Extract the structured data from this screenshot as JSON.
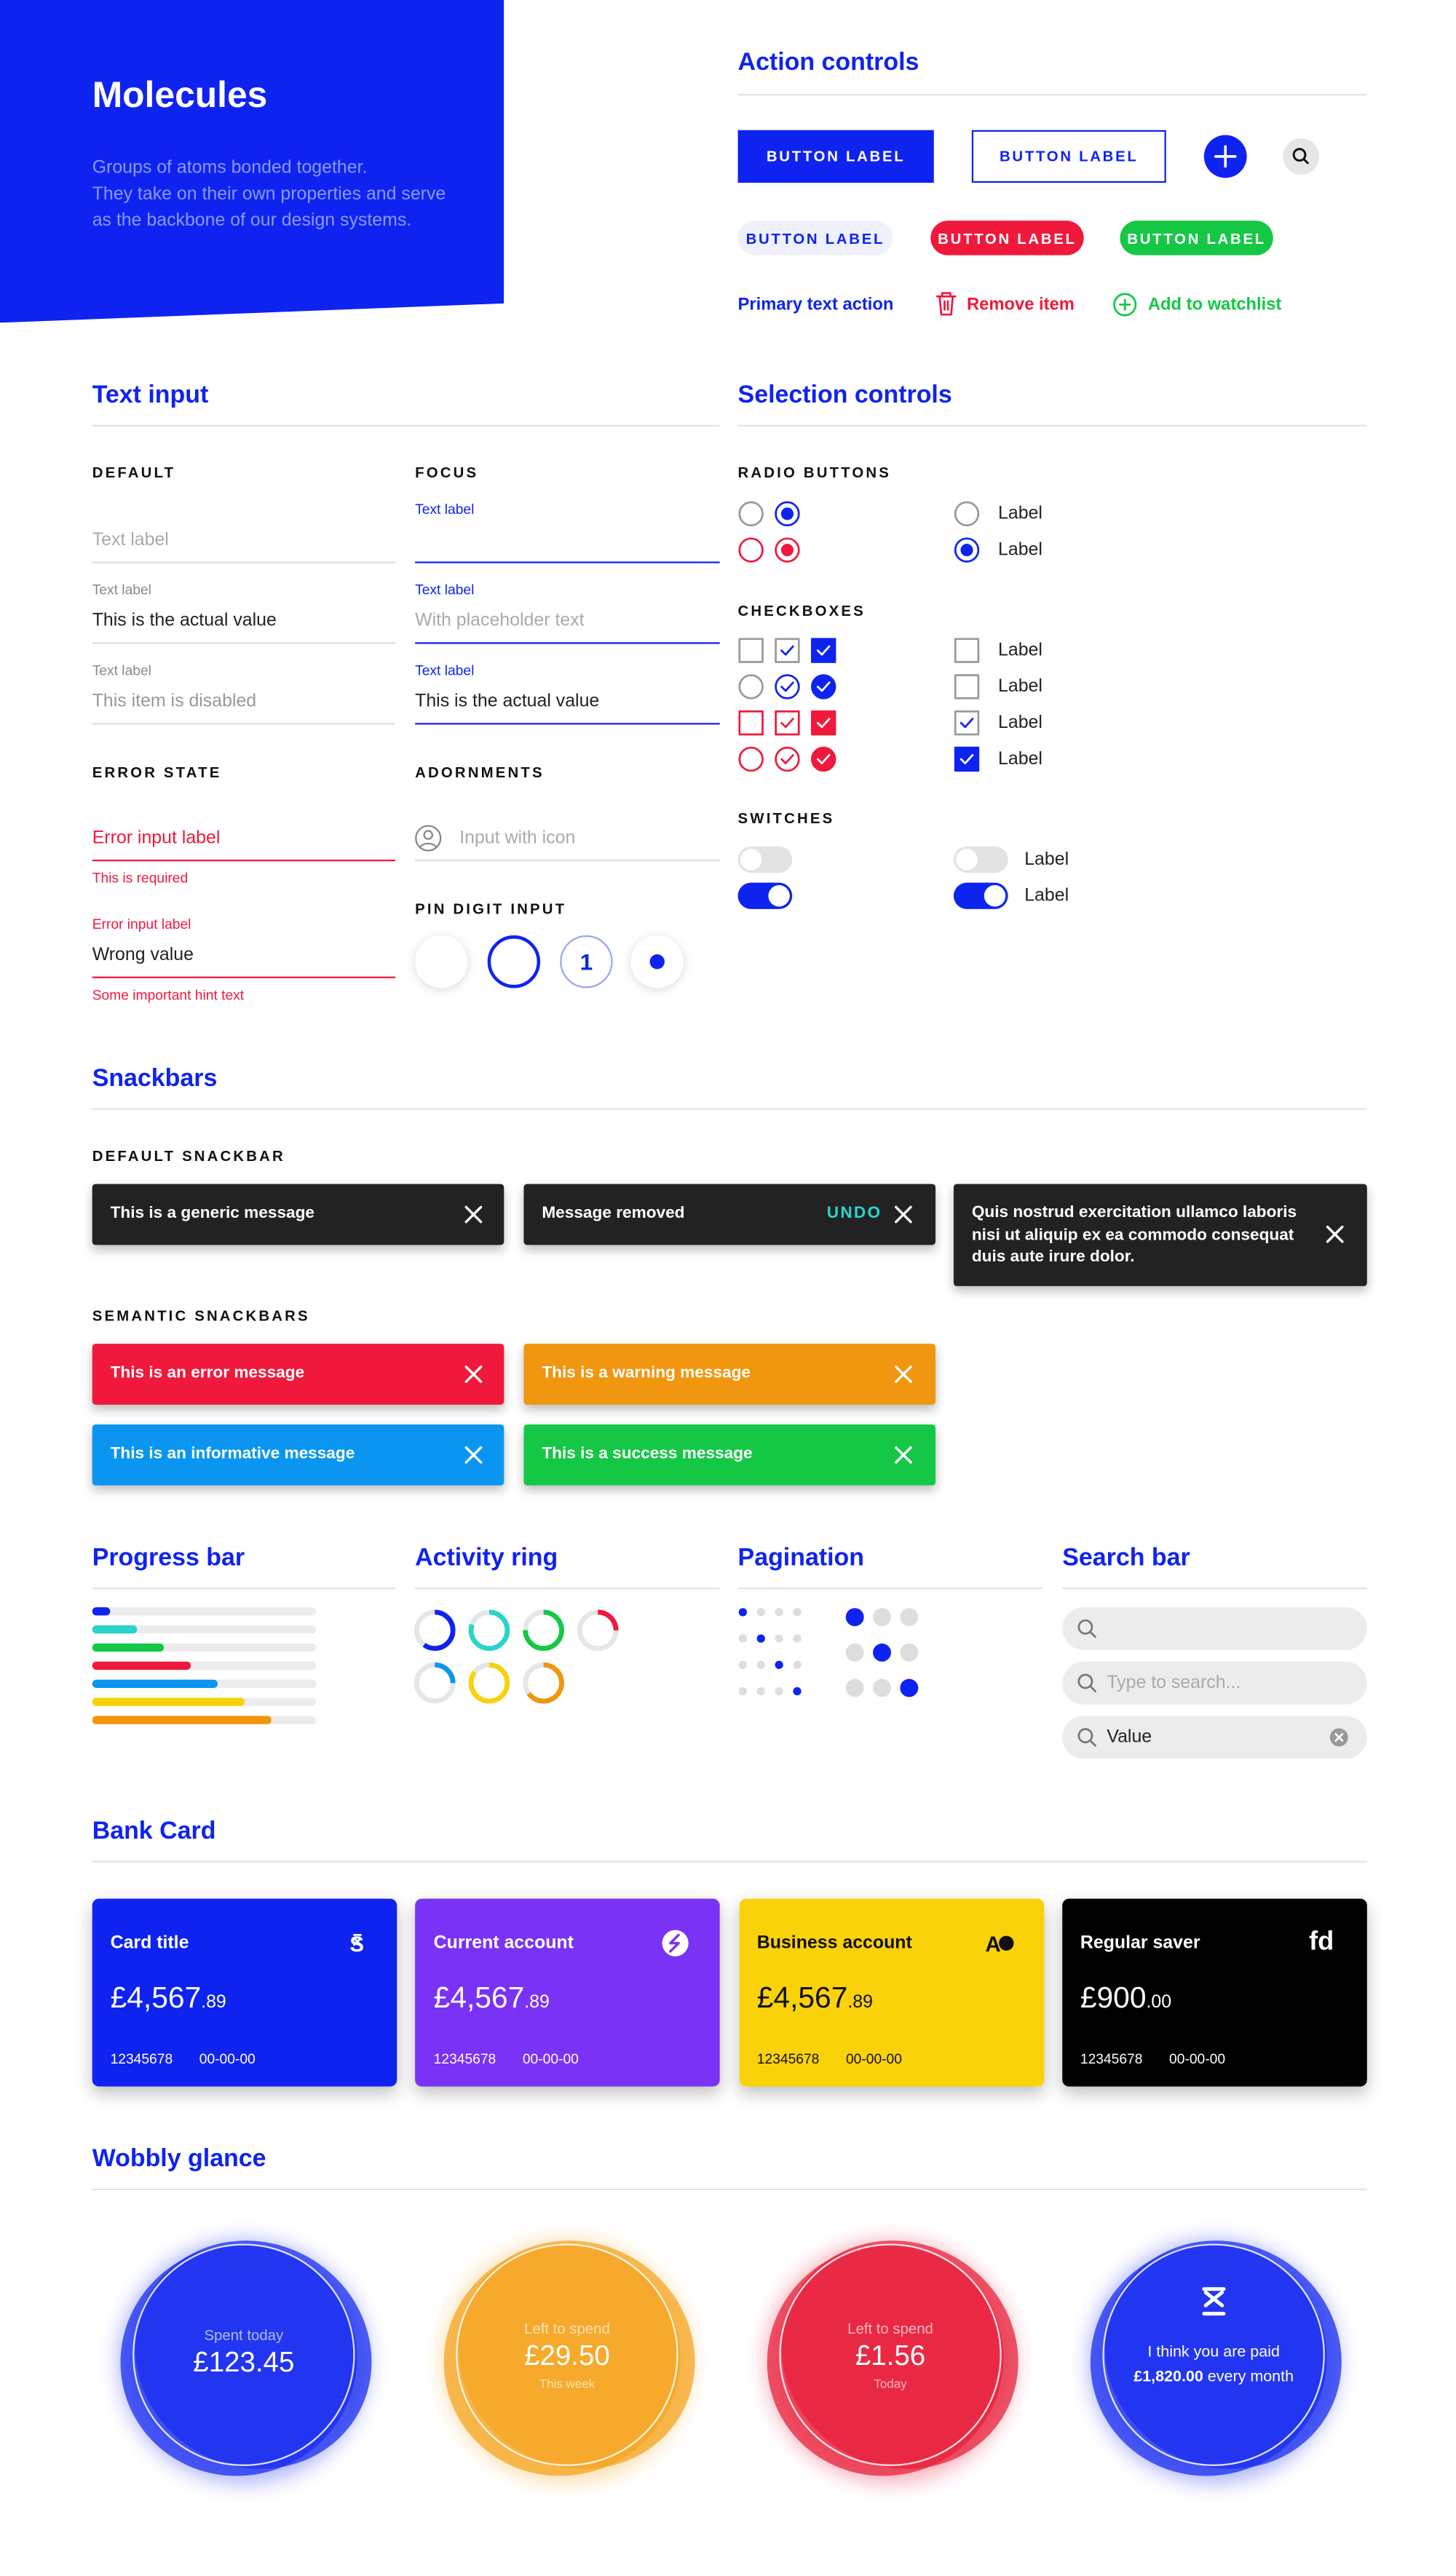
{
  "hero": {
    "title": "Molecules",
    "description": [
      "Groups of atoms bonded together.",
      "They take on their own properties and serve",
      "as the backbone of our design systems."
    ]
  },
  "action_controls": {
    "title": "Action controls",
    "buttons": [
      "BUTTON LABEL",
      "BUTTON LABEL",
      "BUTTON LABEL",
      "BUTTON LABEL",
      "BUTTON LABEL"
    ],
    "text_actions": [
      "Primary text action",
      "Remove item",
      "Add to watchlist"
    ]
  },
  "text_input": {
    "title": "Text input",
    "default": {
      "heading": "DEFAULT",
      "fields": [
        {
          "placeholder": "Text label"
        },
        {
          "label": "Text label",
          "value": "This is the actual value"
        },
        {
          "label": "Text label",
          "value": "This item is disabled"
        }
      ]
    },
    "focus": {
      "heading": "FOCUS",
      "fields": [
        {
          "label": "Text label"
        },
        {
          "label": "Text label",
          "placeholder": "With placeholder text"
        },
        {
          "label": "Text label",
          "value": "This is the actual value"
        }
      ]
    },
    "error": {
      "heading": "ERROR STATE",
      "fields": [
        {
          "value": "Error input label",
          "hint": "This is required"
        },
        {
          "label": "Error input label",
          "value": "Wrong value",
          "hint": "Some important hint text"
        }
      ]
    },
    "adornments": {
      "heading": "ADORNMENTS",
      "placeholder": "Input with icon"
    },
    "pin": {
      "heading": "PIN DIGIT INPUT",
      "digit": "1"
    }
  },
  "selection_controls": {
    "title": "Selection controls",
    "radio": {
      "heading": "RADIO BUTTONS",
      "labels": [
        "Label",
        "Label"
      ]
    },
    "checkboxes": {
      "heading": "CHECKBOXES",
      "labels": [
        "Label",
        "Label",
        "Label",
        "Label"
      ]
    },
    "switches": {
      "heading": "SWITCHES",
      "labels": [
        "Label",
        "Label"
      ]
    }
  },
  "snackbars": {
    "title": "Snackbars",
    "default_heading": "DEFAULT SNACKBAR",
    "default": [
      {
        "message": "This is a generic message"
      },
      {
        "message": "Message removed",
        "action": "UNDO"
      },
      {
        "message": "Quis nostrud exercitation ullamco laboris nisi ut aliquip ex ea commodo consequat duis aute irure dolor."
      }
    ],
    "semantic_heading": "SEMANTIC SNACKBARS",
    "semantic": [
      {
        "message": "This is an error message",
        "color": "#f0193c"
      },
      {
        "message": "This is a warning message",
        "color": "#f0960f"
      },
      {
        "message": "This is an informative message",
        "color": "#0a96f0"
      },
      {
        "message": "This is a success message",
        "color": "#14c846"
      }
    ]
  },
  "progress_bar": {
    "title": "Progress bar",
    "values": [
      8,
      20,
      32,
      44,
      56,
      68,
      80
    ],
    "colors": [
      "#0f23f0",
      "#2ad4c8",
      "#14c846",
      "#f0193c",
      "#0a96f0",
      "#fad20a",
      "#f0960f"
    ]
  },
  "activity_ring": {
    "title": "Activity ring",
    "values": [
      60,
      80,
      75,
      25,
      25,
      85,
      65
    ],
    "colors": [
      "#0f23f0",
      "#2ad4c8",
      "#14c846",
      "#f0193c",
      "#0a96f0",
      "#fad20a",
      "#f0960f"
    ]
  },
  "pagination": {
    "title": "Pagination",
    "small_active": [
      0,
      1,
      2,
      3
    ],
    "large_active": [
      0,
      1,
      2
    ]
  },
  "search_bar": {
    "title": "Search bar",
    "placeholder": "Type to search...",
    "value": "Value"
  },
  "bank_card": {
    "title": "Bank Card",
    "cards": [
      {
        "title": "Card title",
        "logo": "S",
        "amount": "£4,567",
        "pence": ".89",
        "account": "12345678",
        "sort_code": "00-00-00",
        "color": "#0f23f0"
      },
      {
        "title": "Current account",
        "amount": "£4,567",
        "pence": ".89",
        "account": "12345678",
        "sort_code": "00-00-00",
        "color": "#7a32f5"
      },
      {
        "title": "Business account",
        "logo": "A",
        "amount": "£4,567",
        "pence": ".89",
        "account": "12345678",
        "sort_code": "00-00-00",
        "color": "#fad20a"
      },
      {
        "title": "Regular saver",
        "logo": "fd",
        "amount": "£900",
        "pence": ".00",
        "account": "12345678",
        "sort_code": "00-00-00",
        "color": "#000000"
      }
    ]
  },
  "wobbly_glance": {
    "title": "Wobbly glance",
    "items": [
      {
        "label": "Spent today",
        "amount": "£123.45",
        "color": "#1a2ef0"
      },
      {
        "label": "Left to spend",
        "amount": "£29.50",
        "sub": "This week",
        "color": "#f5a623"
      },
      {
        "label": "Left to spend",
        "amount": "£1.56",
        "sub": "Today",
        "color": "#e8223c"
      },
      {
        "text": "I think you are paid",
        "amount": "£1,820.00",
        "suffix": "every month",
        "color": "#1a2ef0"
      }
    ]
  }
}
